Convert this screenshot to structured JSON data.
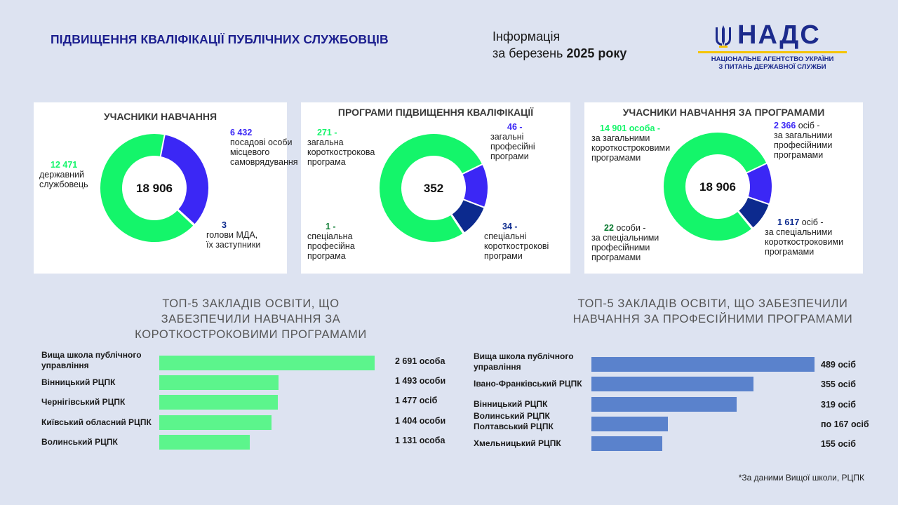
{
  "header": {
    "title": "ПІДВИЩЕННЯ КВАЛІФІКАЦІЇ ПУБЛІЧНИХ СЛУЖБОВЦІВ",
    "info_line1": "Інформація",
    "info_line2_prefix": "за березень ",
    "info_line2_bold": "2025 року",
    "logo_word": "НАДС",
    "logo_sub1": "НАЦІОНАЛЬНЕ АГЕНТСТВО УКРАЇНИ",
    "logo_sub2": "З ПИТАНЬ ДЕРЖАВНОЇ СЛУЖБИ"
  },
  "footnote": "*За даними Вищої школи, РЦПК",
  "colors": {
    "green": "#14f56a",
    "blue": "#3b27f5",
    "navy": "#0c2a8e",
    "darkgreen": "#0a7a30",
    "bar_green": "#5cf58c",
    "bar_blue": "#5a82cc"
  },
  "chart_data": [
    {
      "type": "pie",
      "title": "УЧАСНИКИ НАВЧАННЯ",
      "center": "18 906",
      "slices": [
        {
          "value": 6432,
          "value_text": "6 432",
          "desc_lines": [
            "посадові особи",
            "місцевого",
            "самоврядування"
          ],
          "color": "blue"
        },
        {
          "value": 3,
          "value_text": "3",
          "desc_lines": [
            "голови МДА,",
            "їх заступники"
          ],
          "color": "navy"
        },
        {
          "value": 12471,
          "value_text": "12 471",
          "desc_lines": [
            "державний",
            "службовець"
          ],
          "color": "green"
        }
      ]
    },
    {
      "type": "pie",
      "title": "ПРОГРАМИ ПІДВИЩЕННЯ КВАЛІФІКАЦІЇ",
      "center": "352",
      "slices": [
        {
          "value": 46,
          "value_text": "46",
          "desc_lines": [
            "загальні",
            "професійні",
            "програми"
          ],
          "color": "blue"
        },
        {
          "value": 34,
          "value_text": "34",
          "desc_lines": [
            "спеціальні",
            "короткострокові",
            "програми"
          ],
          "color": "navy"
        },
        {
          "value": 1,
          "value_text": "1",
          "desc_lines": [
            "спеціальна",
            "професійна",
            "програма"
          ],
          "color": "darkgreen"
        },
        {
          "value": 271,
          "value_text": "271",
          "desc_lines": [
            "загальна",
            "короткострокова",
            "програма"
          ],
          "color": "green"
        }
      ]
    },
    {
      "type": "pie",
      "title": "УЧАСНИКИ НАВЧАННЯ ЗА ПРОГРАМАМИ",
      "center": "18 906",
      "slices": [
        {
          "value": 2366,
          "value_text": "2 366",
          "unit": "осіб -",
          "desc_lines": [
            "за загальними",
            "професійними",
            "програмами"
          ],
          "color": "blue"
        },
        {
          "value": 1617,
          "value_text": "1 617",
          "unit": "осіб -",
          "desc_lines": [
            "за спеціальними",
            "короткостроковими",
            "програмами"
          ],
          "color": "navy"
        },
        {
          "value": 22,
          "value_text": "22",
          "unit": "особи -",
          "desc_lines": [
            "за спеціальними",
            "професійними",
            "програмами"
          ],
          "color": "darkgreen"
        },
        {
          "value": 14901,
          "value_text": "14 901 особа -",
          "unit": "",
          "desc_lines": [
            "за загальними",
            "короткостроковими",
            "програмами"
          ],
          "color": "green"
        }
      ]
    },
    {
      "type": "bar",
      "orientation": "horizontal",
      "title_lines": [
        "ТОП-5 ЗАКЛАДІВ ОСВІТИ, ЩО",
        "ЗАБЕЗПЕЧИЛИ НАВЧАННЯ ЗА",
        "КОРОТКОСТРОКОВИМИ ПРОГРАМАМИ"
      ],
      "categories": [
        [
          "Вища школа публічного",
          "управління"
        ],
        [
          "Вінницький РЦПК"
        ],
        [
          "Чернігівський РЦПК"
        ],
        [
          "Київський обласний РЦПК"
        ],
        [
          "Волинський РЦПК"
        ]
      ],
      "values": [
        2691,
        1493,
        1477,
        1404,
        1131
      ],
      "value_labels": [
        "2 691 особа",
        "1 493 особи",
        "1 477 осіб",
        "1 404 особи",
        "1 131 особа"
      ],
      "xlim": [
        0,
        2691
      ],
      "color": "bar_green"
    },
    {
      "type": "bar",
      "orientation": "horizontal",
      "title_lines": [
        "ТОП-5 ЗАКЛАДІВ ОСВІТИ, ЩО ЗАБЕЗПЕЧИЛИ",
        "НАВЧАННЯ ЗА ПРОФЕСІЙНИМИ ПРОГРАМАМИ"
      ],
      "categories": [
        [
          "Вища школа публічного",
          "управління"
        ],
        [
          "Івано-Франківський РЦПК"
        ],
        [
          "Вінницький РЦПК"
        ],
        [
          "Волинський РЦПК",
          "Полтавський РЦПК"
        ],
        [
          "Хмельницький РЦПК"
        ]
      ],
      "values": [
        489,
        355,
        319,
        167,
        155
      ],
      "value_labels": [
        "489 осіб",
        "355 осіб",
        "319 осіб",
        "по 167 осіб",
        "155 осіб"
      ],
      "xlim": [
        0,
        489
      ],
      "color": "bar_blue"
    }
  ]
}
